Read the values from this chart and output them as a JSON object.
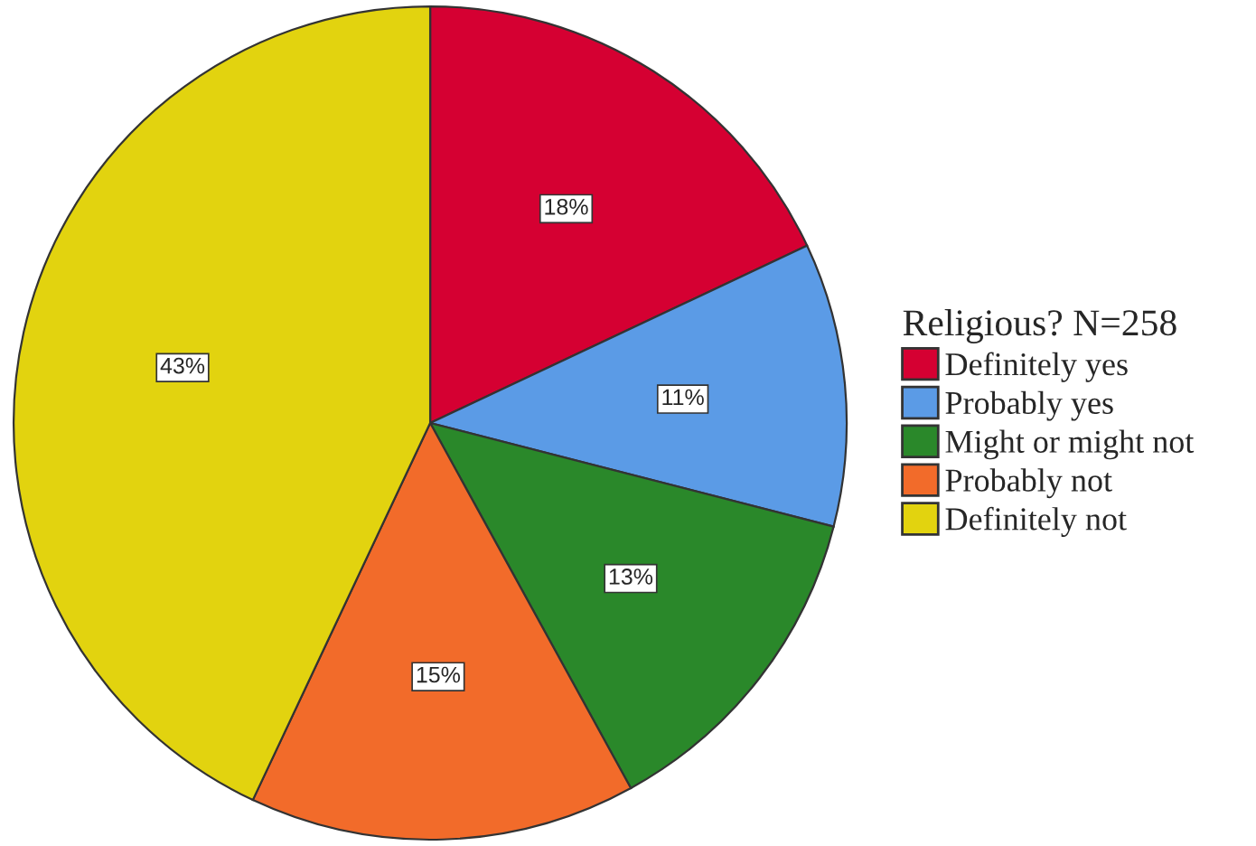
{
  "chart_data": {
    "type": "pie",
    "legend_title": "Religious? N=258",
    "legend": "right",
    "categories": [
      "Definitely yes",
      "Probably yes",
      "Might or might not",
      "Probably not",
      "Definitely not"
    ],
    "values": [
      18,
      11,
      13,
      15,
      43
    ],
    "colors": [
      "#d50032",
      "#5b9be6",
      "#2a882a",
      "#f26b2a",
      "#e2d30f"
    ],
    "value_labels": [
      "18%",
      "11%",
      "13%",
      "15%",
      "43%"
    ]
  }
}
